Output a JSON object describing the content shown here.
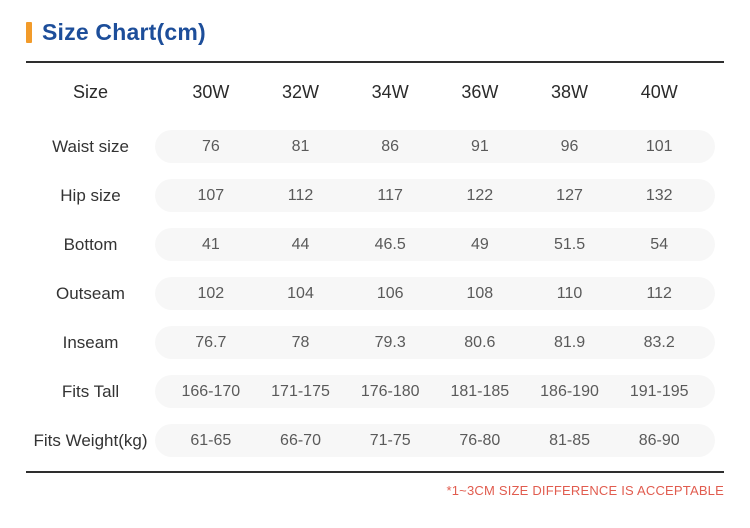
{
  "title": {
    "text": "Size Chart(cm)",
    "accent_color": "#f29b2a",
    "text_color": "#1d4e9a"
  },
  "table": {
    "header": {
      "label": "Size",
      "columns": [
        "30W",
        "32W",
        "34W",
        "36W",
        "38W",
        "40W"
      ]
    },
    "rows": [
      {
        "label": "Waist size",
        "values": [
          "76",
          "81",
          "86",
          "91",
          "96",
          "101"
        ]
      },
      {
        "label": "Hip size",
        "values": [
          "107",
          "112",
          "117",
          "122",
          "127",
          "132"
        ]
      },
      {
        "label": "Bottom",
        "values": [
          "41",
          "44",
          "46.5",
          "49",
          "51.5",
          "54"
        ]
      },
      {
        "label": "Outseam",
        "values": [
          "102",
          "104",
          "106",
          "108",
          "110",
          "112"
        ]
      },
      {
        "label": "Inseam",
        "values": [
          "76.7",
          "78",
          "79.3",
          "80.6",
          "81.9",
          "83.2"
        ]
      },
      {
        "label": "Fits Tall",
        "values": [
          "166-170",
          "171-175",
          "176-180",
          "181-185",
          "186-190",
          "191-195"
        ]
      },
      {
        "label": "Fits Weight(kg)",
        "values": [
          "61-65",
          "66-70",
          "71-75",
          "76-80",
          "81-85",
          "86-90"
        ]
      }
    ],
    "row_pill_color": "#f7f7f7"
  },
  "note": {
    "text": "*1~3CM SIZE DIFFERENCE IS ACCEPTABLE",
    "color": "#e15c4f"
  },
  "chart_data": {
    "type": "table",
    "title": "Size Chart(cm)",
    "columns": [
      "Size",
      "30W",
      "32W",
      "34W",
      "36W",
      "38W",
      "40W"
    ],
    "rows": [
      [
        "Waist size",
        "76",
        "81",
        "86",
        "91",
        "96",
        "101"
      ],
      [
        "Hip size",
        "107",
        "112",
        "117",
        "122",
        "127",
        "132"
      ],
      [
        "Bottom",
        "41",
        "44",
        "46.5",
        "49",
        "51.5",
        "54"
      ],
      [
        "Outseam",
        "102",
        "104",
        "106",
        "108",
        "110",
        "112"
      ],
      [
        "Inseam",
        "76.7",
        "78",
        "79.3",
        "80.6",
        "81.9",
        "83.2"
      ],
      [
        "Fits Tall",
        "166-170",
        "171-175",
        "176-180",
        "181-185",
        "186-190",
        "191-195"
      ],
      [
        "Fits Weight(kg)",
        "61-65",
        "66-70",
        "71-75",
        "76-80",
        "81-85",
        "86-90"
      ]
    ],
    "footnote": "*1~3CM SIZE DIFFERENCE IS ACCEPTABLE"
  }
}
